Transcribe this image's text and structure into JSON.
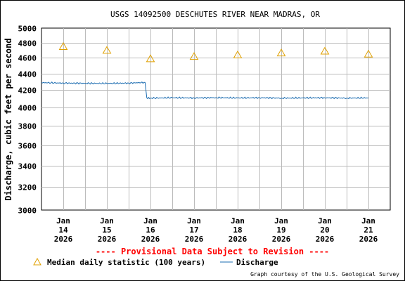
{
  "chart_data": {
    "type": "line",
    "title": "USGS 14092500 DESCHUTES RIVER NEAR MADRAS, OR",
    "ylabel": "Discharge, cubic feet per second",
    "xlabel": "",
    "ylim": [
      3000,
      5000
    ],
    "y_scale": "log",
    "y_ticks": [
      3000,
      3200,
      3400,
      3600,
      3800,
      4000,
      4200,
      4400,
      4600,
      4800,
      5000
    ],
    "y_tick_labels": [
      "3000",
      "3200",
      "3400",
      "3600",
      "3800",
      "4000",
      "4200",
      "4400",
      "4600",
      "4800",
      "5000"
    ],
    "xlim": [
      "2026-01-13T12:00",
      "2026-01-21T12:00"
    ],
    "x_ticks": [
      {
        "date": "2026-01-14",
        "lines": [
          "Jan",
          "14",
          "2026"
        ]
      },
      {
        "date": "2026-01-15",
        "lines": [
          "Jan",
          "15",
          "2026"
        ]
      },
      {
        "date": "2026-01-16",
        "lines": [
          "Jan",
          "16",
          "2026"
        ]
      },
      {
        "date": "2026-01-17",
        "lines": [
          "Jan",
          "17",
          "2026"
        ]
      },
      {
        "date": "2026-01-18",
        "lines": [
          "Jan",
          "18",
          "2026"
        ]
      },
      {
        "date": "2026-01-19",
        "lines": [
          "Jan",
          "19",
          "2026"
        ]
      },
      {
        "date": "2026-01-20",
        "lines": [
          "Jan",
          "20",
          "2026"
        ]
      },
      {
        "date": "2026-01-21",
        "lines": [
          "Jan",
          "21",
          "2026"
        ]
      }
    ],
    "grid": true,
    "series": [
      {
        "name": "Median daily statistic (100 years)",
        "kind": "marker",
        "marker": "triangle",
        "color": "#e0a000",
        "points": [
          {
            "x": "2026-01-14",
            "y": 4750
          },
          {
            "x": "2026-01-15",
            "y": 4700
          },
          {
            "x": "2026-01-16",
            "y": 4590
          },
          {
            "x": "2026-01-17",
            "y": 4620
          },
          {
            "x": "2026-01-18",
            "y": 4640
          },
          {
            "x": "2026-01-19",
            "y": 4665
          },
          {
            "x": "2026-01-20",
            "y": 4690
          },
          {
            "x": "2026-01-21",
            "y": 4650
          }
        ]
      },
      {
        "name": "Discharge",
        "kind": "line",
        "color": "#1a6bb0",
        "points": [
          {
            "x": "2026-01-13T12:00",
            "y": 4290
          },
          {
            "x": "2026-01-14T00:00",
            "y": 4285
          },
          {
            "x": "2026-01-14T12:00",
            "y": 4282
          },
          {
            "x": "2026-01-15T00:00",
            "y": 4280
          },
          {
            "x": "2026-01-15T12:00",
            "y": 4285
          },
          {
            "x": "2026-01-15T21:00",
            "y": 4292
          },
          {
            "x": "2026-01-15T22:00",
            "y": 4110
          },
          {
            "x": "2026-01-16T00:00",
            "y": 4108
          },
          {
            "x": "2026-01-16T12:00",
            "y": 4112
          },
          {
            "x": "2026-01-17T00:00",
            "y": 4110
          },
          {
            "x": "2026-01-17T12:00",
            "y": 4113
          },
          {
            "x": "2026-01-18T00:00",
            "y": 4110
          },
          {
            "x": "2026-01-18T12:00",
            "y": 4112
          },
          {
            "x": "2026-01-19T00:00",
            "y": 4108
          },
          {
            "x": "2026-01-19T12:00",
            "y": 4110
          },
          {
            "x": "2026-01-20T00:00",
            "y": 4112
          },
          {
            "x": "2026-01-20T12:00",
            "y": 4108
          },
          {
            "x": "2026-01-21T00:00",
            "y": 4110
          }
        ]
      }
    ],
    "legend_position": "bottom-left"
  },
  "notice": "---- Provisional Data Subject to Revision ----",
  "notice_color": "#ff0000",
  "credit": "Graph courtesy of the U.S. Geological Survey",
  "legend": {
    "median_label": "Median daily statistic (100 years)",
    "discharge_label": "Discharge"
  }
}
